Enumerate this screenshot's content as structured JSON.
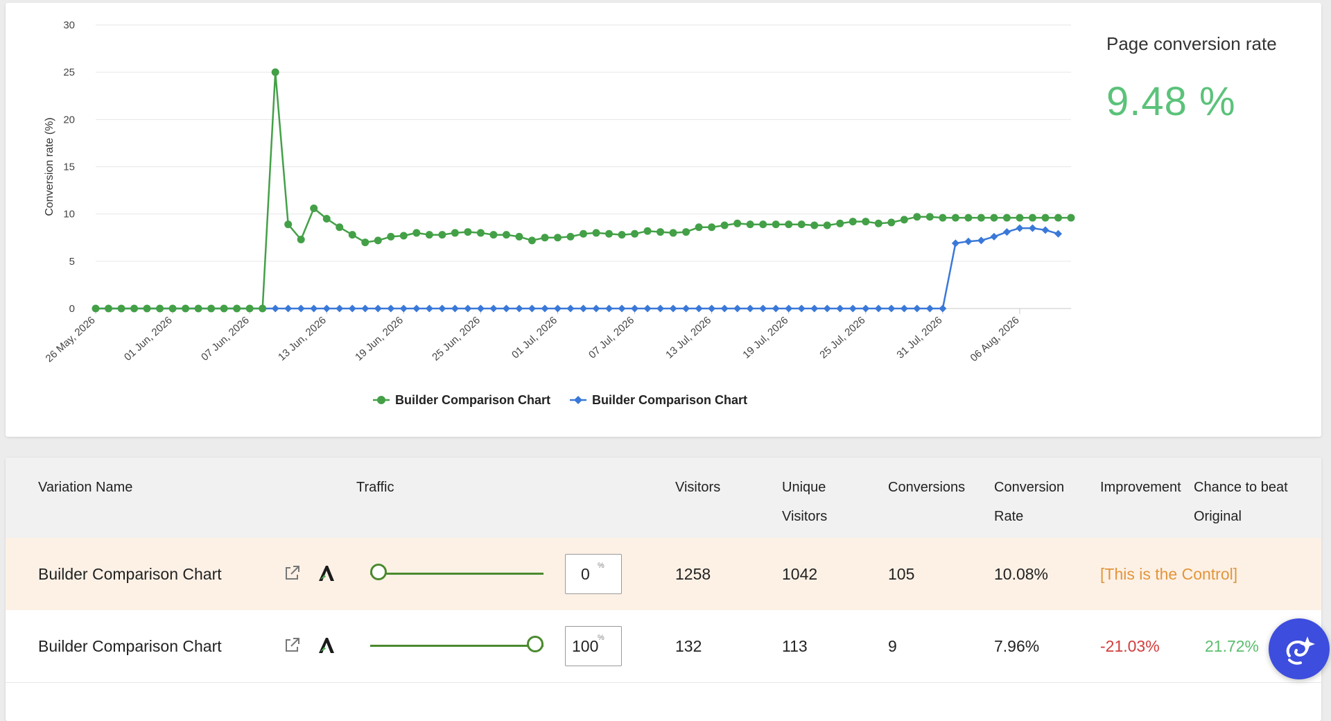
{
  "summary": {
    "title": "Page conversion rate",
    "value": "9.48 %"
  },
  "colors": {
    "green_series": "#43a047",
    "blue_series": "#3a78d8",
    "summary_value": "#5bc27a",
    "control_text": "#e2953b",
    "negative": "#d33c3c",
    "positive": "#5bbd6d",
    "slider": "#4a8a2e",
    "ai_button": "#3d4ddd"
  },
  "chart_data": {
    "type": "line",
    "ylabel": "Conversion rate (%)",
    "ylim": [
      0,
      30
    ],
    "y_ticks": [
      "0",
      "5",
      "10",
      "15",
      "20",
      "25",
      "30"
    ],
    "x_tick_labels": [
      "26 May, 2026",
      "01 Jun, 2026",
      "07 Jun, 2026",
      "13 Jun, 2026",
      "19 Jun, 2026",
      "25 Jun, 2026",
      "01 Jul, 2026",
      "07 Jul, 2026",
      "13 Jul, 2026",
      "19 Jul, 2026",
      "25 Jul, 2026",
      "31 Jul, 2026",
      "06 Aug, 2026"
    ],
    "x_start": "26 May, 2026",
    "x_end": "10 Aug, 2026",
    "legend_position": "bottom",
    "grid": true,
    "series": [
      {
        "name": "Builder Comparison Chart",
        "marker": "circle",
        "values": [
          0,
          0,
          0,
          0,
          0,
          0,
          0,
          0,
          0,
          0,
          0,
          0,
          0,
          0,
          25,
          8.9,
          7.3,
          10.6,
          9.5,
          8.6,
          7.8,
          7.0,
          7.2,
          7.6,
          7.7,
          8.0,
          7.8,
          7.8,
          8.0,
          8.1,
          8.0,
          7.8,
          7.8,
          7.6,
          7.2,
          7.5,
          7.5,
          7.6,
          7.9,
          8.0,
          7.9,
          7.8,
          7.9,
          8.2,
          8.1,
          8.0,
          8.1,
          8.6,
          8.6,
          8.8,
          9.0,
          8.9,
          8.9,
          8.9,
          8.9,
          8.9,
          8.8,
          8.8,
          9.0,
          9.2,
          9.2,
          9.0,
          9.1,
          9.4,
          9.7,
          9.7,
          9.6,
          9.6,
          9.6,
          9.6,
          9.6,
          9.6,
          9.6,
          9.6,
          9.6,
          9.6,
          9.6
        ]
      },
      {
        "name": "Builder Comparison Chart",
        "marker": "diamond",
        "values": [
          0,
          0,
          0,
          0,
          0,
          0,
          0,
          0,
          0,
          0,
          0,
          0,
          0,
          0,
          0,
          0,
          0,
          0,
          0,
          0,
          0,
          0,
          0,
          0,
          0,
          0,
          0,
          0,
          0,
          0,
          0,
          0,
          0,
          0,
          0,
          0,
          0,
          0,
          0,
          0,
          0,
          0,
          0,
          0,
          0,
          0,
          0,
          0,
          0,
          0,
          0,
          0,
          0,
          0,
          0,
          0,
          0,
          0,
          0,
          0,
          0,
          0,
          0,
          0,
          0,
          0,
          0,
          6.9,
          7.1,
          7.2,
          7.6,
          8.1,
          8.5,
          8.5,
          8.3,
          7.9
        ]
      }
    ]
  },
  "table": {
    "headers": {
      "variation_name": "Variation Name",
      "traffic": "Traffic",
      "visitors": "Visitors",
      "unique_visitors_1": "Unique",
      "unique_visitors_2": "Visitors",
      "conversions": "Conversions",
      "conversion_rate_1": "Conversion",
      "conversion_rate_2": "Rate",
      "improvement": "Improvement",
      "chance_1": "Chance to beat",
      "chance_2": "Original"
    },
    "rows": [
      {
        "name": "Builder Comparison Chart",
        "traffic_value": "0",
        "traffic_fraction": 0,
        "unit": "%",
        "visitors": "1258",
        "unique_visitors": "1042",
        "conversions": "105",
        "conversion_rate": "10.08%",
        "improvement": "[This is the Control]",
        "chance": ""
      },
      {
        "name": "Builder Comparison Chart",
        "traffic_value": "100",
        "traffic_fraction": 1,
        "unit": "%",
        "visitors": "132",
        "unique_visitors": "113",
        "conversions": "9",
        "conversion_rate": "7.96%",
        "improvement": "-21.03%",
        "chance": "21.72%"
      }
    ]
  }
}
